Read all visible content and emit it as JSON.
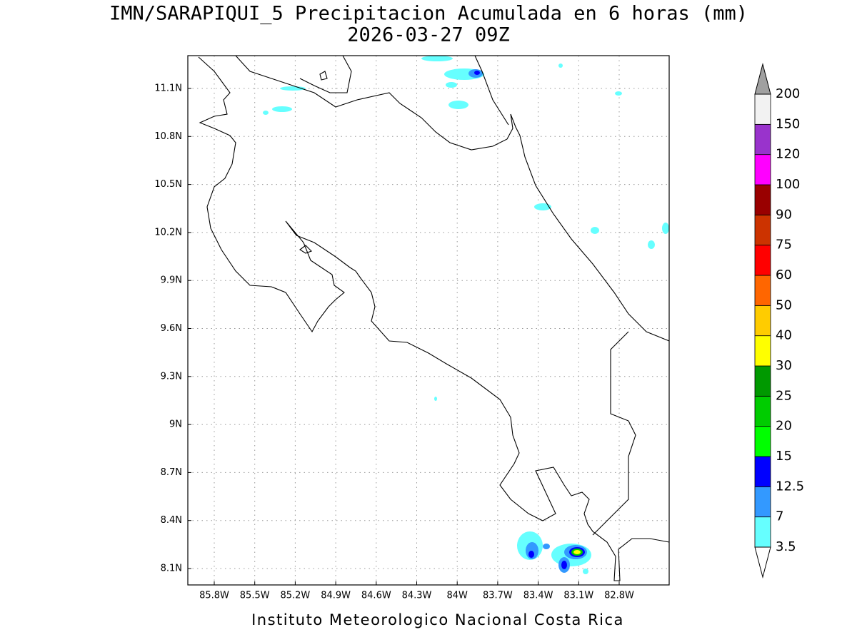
{
  "header": {
    "title": "IMN/SARAPIQUI_5 Precipitacion Acumulada en 6 horas (mm)",
    "subtitle": "2026-03-27 09Z"
  },
  "map": {
    "lon_labels": [
      "85.8W",
      "85.5W",
      "85.2W",
      "84.9W",
      "84.6W",
      "84.3W",
      "84W",
      "83.7W",
      "83.4W",
      "83.1W",
      "82.8W"
    ],
    "lat_labels": [
      "11.1N",
      "10.8N",
      "10.5N",
      "10.2N",
      "9.9N",
      "9.6N",
      "9.3N",
      "9N",
      "8.7N",
      "8.4N",
      "8.1N"
    ],
    "grid": true
  },
  "colorbar": {
    "levels": [
      "3.5",
      "7",
      "12.5",
      "15",
      "20",
      "25",
      "30",
      "40",
      "50",
      "60",
      "75",
      "90",
      "100",
      "120",
      "150",
      "200"
    ],
    "colors": [
      "#66ffff",
      "#3399ff",
      "#0000ff",
      "#00ff00",
      "#00cc00",
      "#009900",
      "#ffff00",
      "#ffcc00",
      "#ff6600",
      "#ff0000",
      "#cc3300",
      "#990000",
      "#ff00ff",
      "#9933cc",
      "#f2f2f2"
    ],
    "under_color": "#ffffff",
    "over_color": "#a0a0a0"
  },
  "footer": {
    "credit": "Instituto Meteorologico Nacional Costa Rica"
  }
}
